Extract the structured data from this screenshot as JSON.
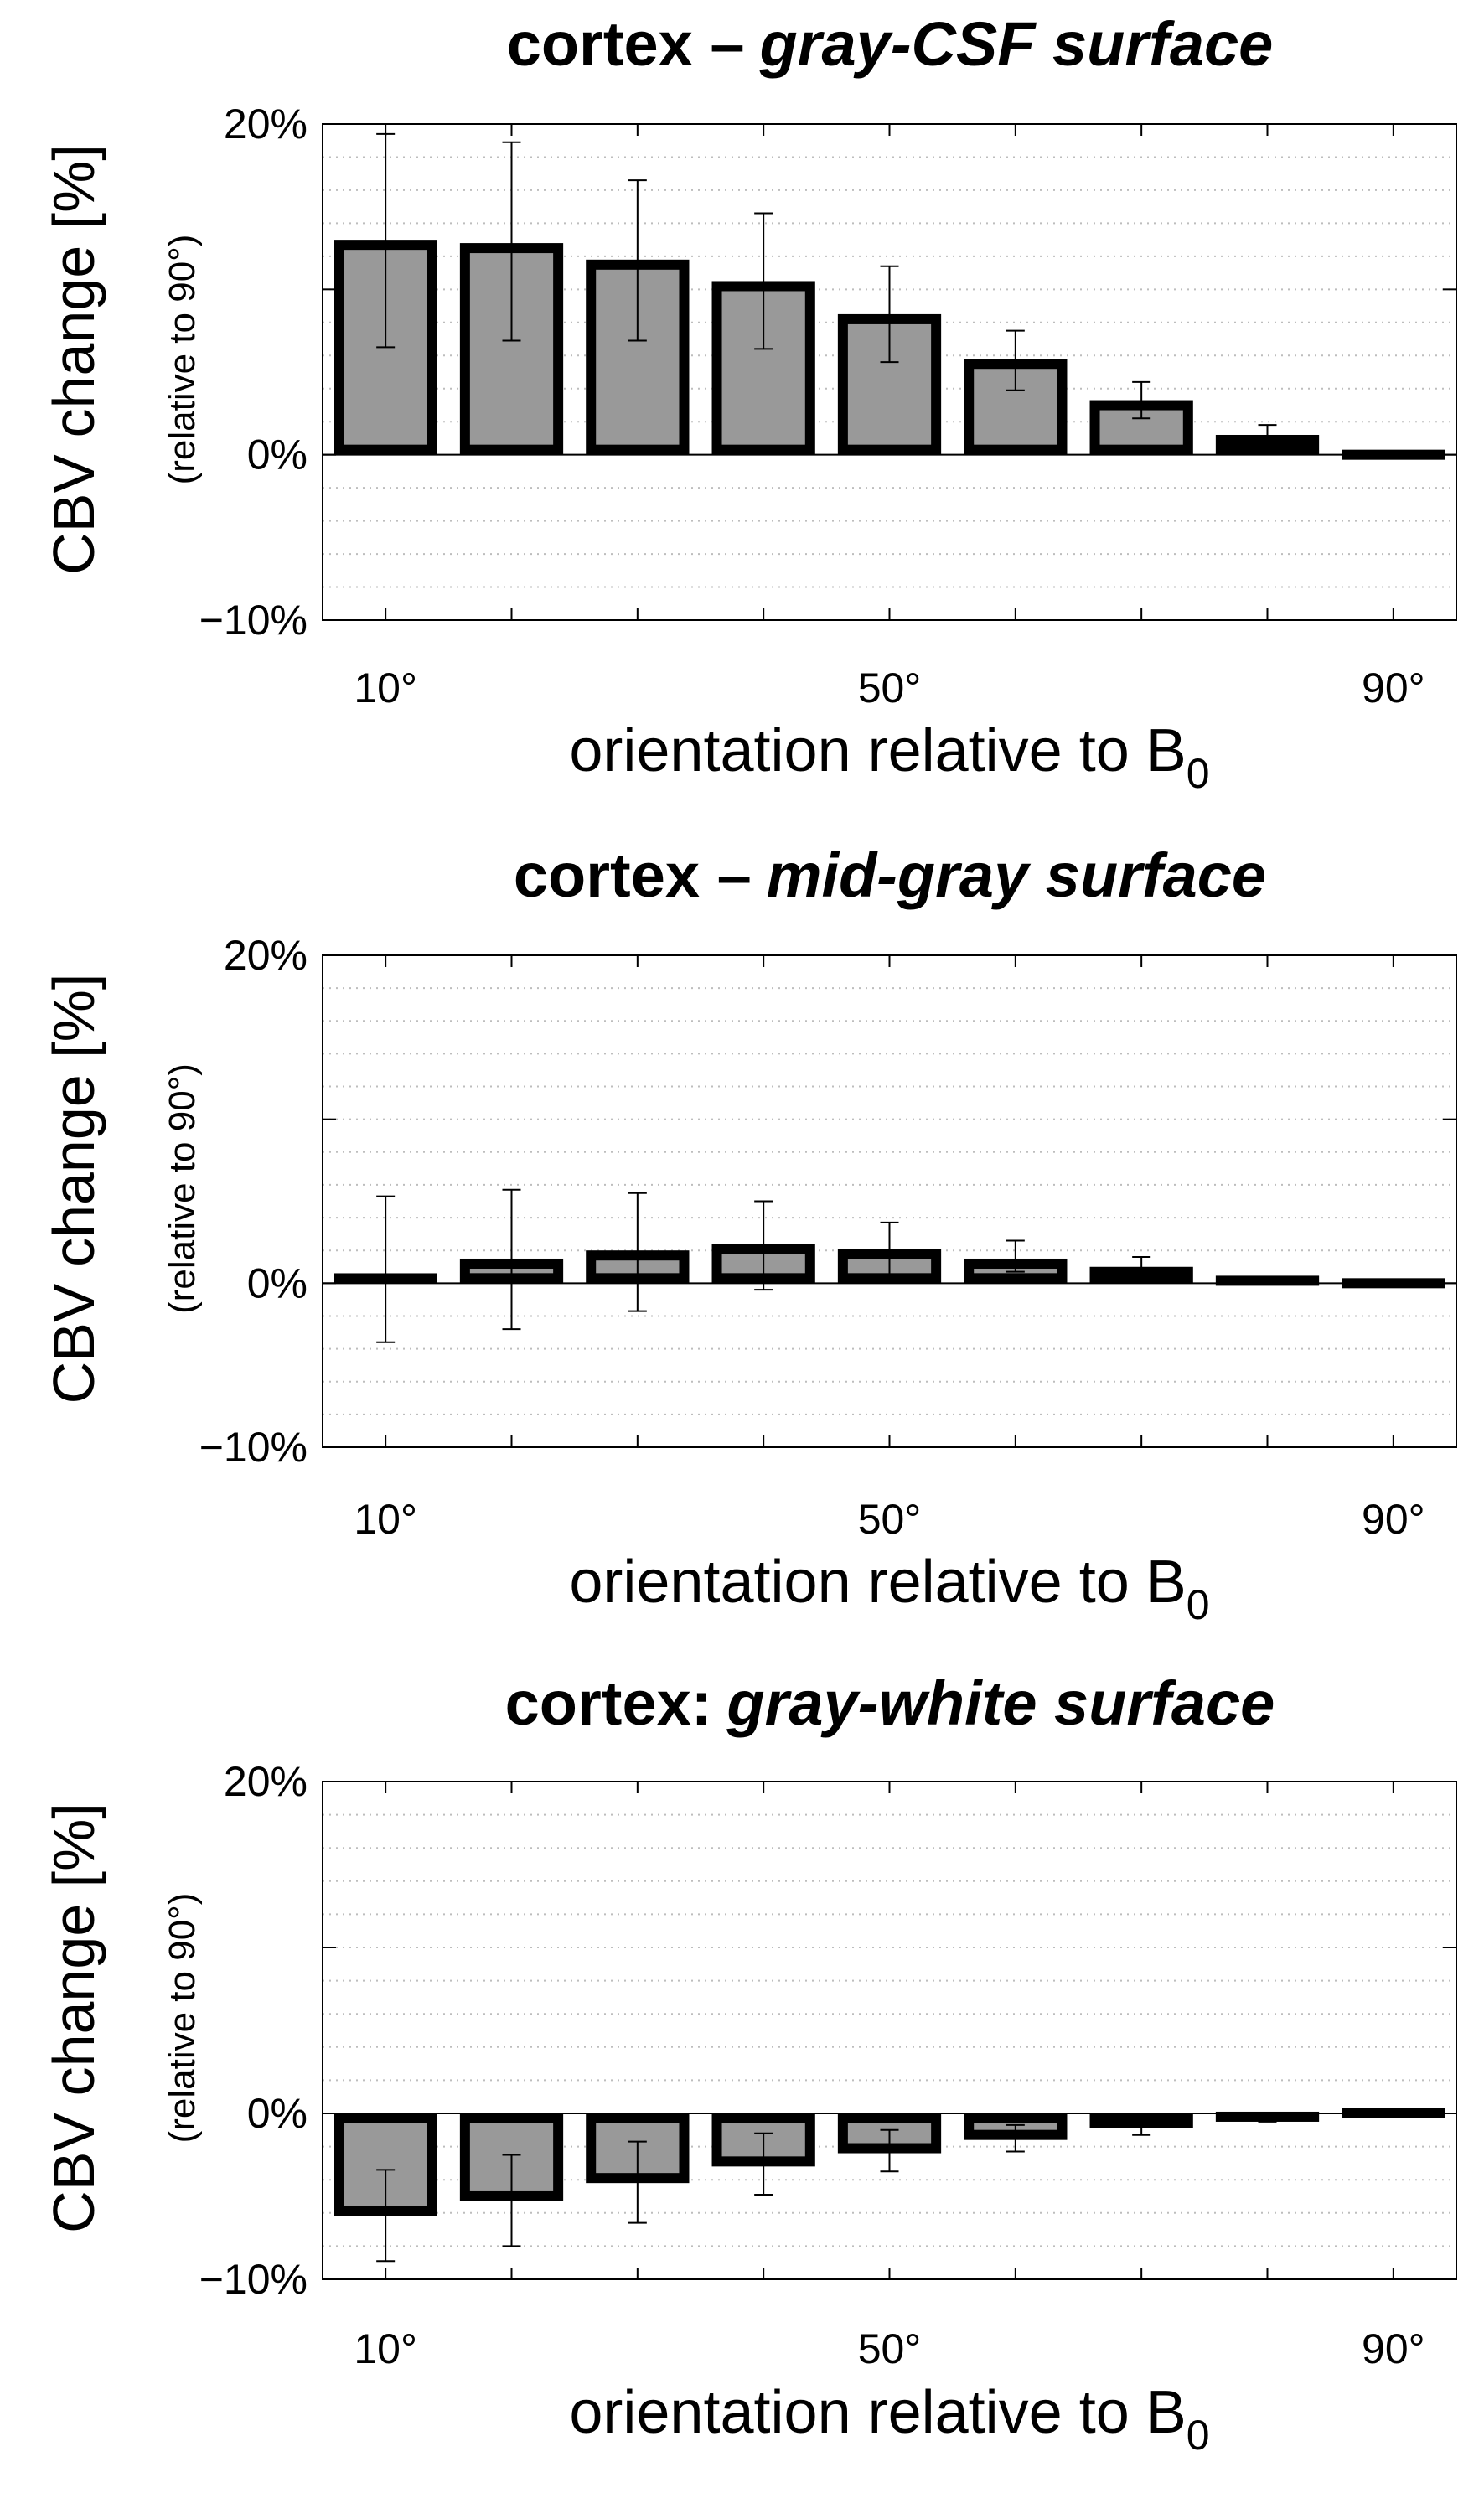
{
  "chart_data": [
    {
      "type": "bar",
      "title_main": "cortex –",
      "title_em": "gray-CSF surface",
      "xlabel": "orientation relative to B",
      "xlabel_sub": "0",
      "ylabel": "CBV change [%]",
      "ylabel_sub": "(relative to 90°)",
      "x_tick_labels": [
        "10°",
        "50°",
        "90°"
      ],
      "x_ticks": [
        10,
        50,
        90
      ],
      "x": [
        10,
        20,
        30,
        40,
        50,
        60,
        70,
        80,
        90
      ],
      "values": [
        13.0,
        12.8,
        11.8,
        10.5,
        8.5,
        5.8,
        3.3,
        1.2,
        0.0
      ],
      "err_low": [
        6.5,
        6.9,
        6.9,
        6.4,
        5.6,
        3.9,
        2.2,
        0.6,
        0.0
      ],
      "err_high": [
        19.4,
        18.9,
        16.6,
        14.6,
        11.4,
        7.5,
        4.4,
        1.8,
        0.0
      ],
      "y_tick_labels": [
        "20%",
        "0%",
        "−10%"
      ],
      "y_ticks": [
        20,
        0,
        -10
      ],
      "ylim": [
        -10,
        20
      ],
      "xlim": [
        5,
        95
      ],
      "bar_color": "#999999",
      "grid": "minor-dotted"
    },
    {
      "type": "bar",
      "title_main": "cortex –",
      "title_em": "mid-gray surface",
      "xlabel": "orientation relative to B",
      "xlabel_sub": "0",
      "ylabel": "CBV change [%]",
      "ylabel_sub": "(relative to 90°)",
      "x_tick_labels": [
        "10°",
        "50°",
        "90°"
      ],
      "x_ticks": [
        10,
        50,
        90
      ],
      "x": [
        10,
        20,
        30,
        40,
        50,
        60,
        70,
        80,
        90
      ],
      "values": [
        0.6,
        1.5,
        2.0,
        2.4,
        2.1,
        1.5,
        1.0,
        0.3,
        0.0
      ],
      "err_low": [
        -3.6,
        -2.8,
        -1.7,
        -0.4,
        0.5,
        0.7,
        0.5,
        0.2,
        0.0
      ],
      "err_high": [
        5.3,
        5.7,
        5.5,
        5.0,
        3.7,
        2.6,
        1.6,
        0.4,
        0.0
      ],
      "y_tick_labels": [
        "20%",
        "0%",
        "−10%"
      ],
      "y_ticks": [
        20,
        0,
        -10
      ],
      "ylim": [
        -10,
        20
      ],
      "xlim": [
        5,
        95
      ],
      "bar_color": "#999999",
      "grid": "minor-dotted"
    },
    {
      "type": "bar",
      "title_main": "cortex:",
      "title_em": "gray-white surface",
      "xlabel": "orientation relative to B",
      "xlabel_sub": "0",
      "ylabel": "CBV change [%]",
      "ylabel_sub": "(relative to 90°)",
      "x_tick_labels": [
        "10°",
        "50°",
        "90°"
      ],
      "x_ticks": [
        10,
        50,
        90
      ],
      "x": [
        10,
        20,
        30,
        40,
        50,
        60,
        70,
        80,
        90
      ],
      "values": [
        -6.2,
        -5.3,
        -4.2,
        -3.2,
        -2.4,
        -1.6,
        -0.9,
        -0.4,
        0.0
      ],
      "err_low": [
        -8.9,
        -8.0,
        -6.6,
        -4.9,
        -3.5,
        -2.3,
        -1.3,
        -0.5,
        0.0
      ],
      "err_high": [
        -3.4,
        -2.5,
        -1.7,
        -1.2,
        -1.0,
        -0.7,
        -0.4,
        -0.2,
        0.0
      ],
      "y_tick_labels": [
        "20%",
        "0%",
        "−10%"
      ],
      "y_ticks": [
        20,
        0,
        -10
      ],
      "ylim": [
        -10,
        20
      ],
      "xlim": [
        5,
        95
      ],
      "bar_color": "#999999",
      "grid": "minor-dotted"
    }
  ]
}
